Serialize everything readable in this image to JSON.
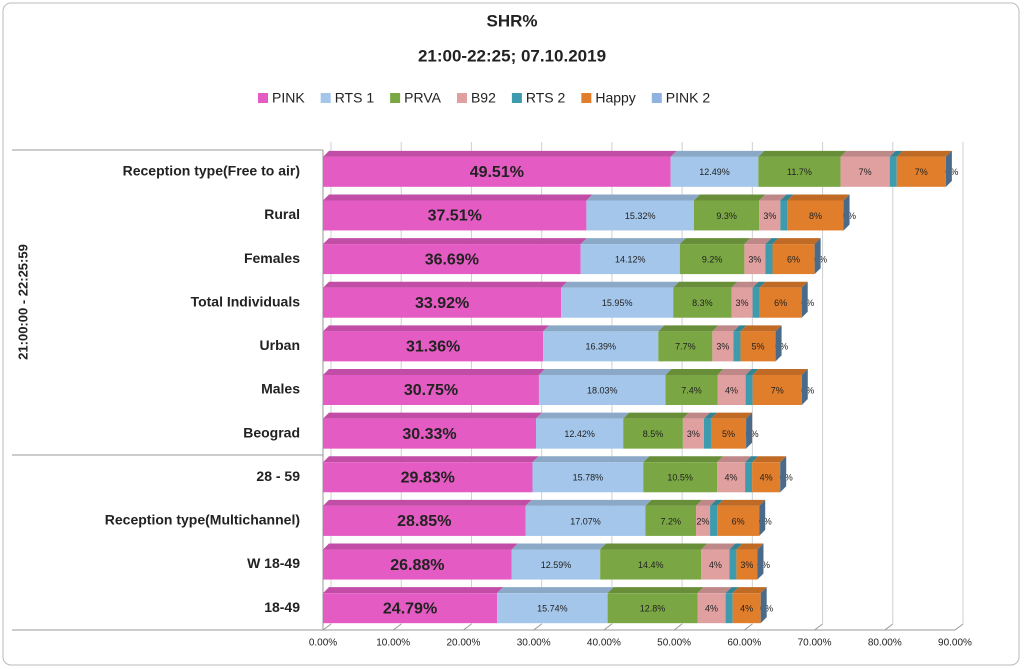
{
  "chart_data": {
    "type": "stacked-bar-horizontal",
    "title": "SHR%",
    "subtitle": "21:00-22:25; 07.10.2019",
    "group_label": "21:00:00 - 22:25:59",
    "categories": [
      "Reception type(Free to air)",
      "Rural",
      "Females",
      "Total Individuals",
      "Urban",
      "Males",
      "Beograd",
      "28 - 59",
      "Reception type(Multichannel)",
      "W 18-49",
      "18-49"
    ],
    "series": [
      {
        "name": "PINK",
        "color": "#e45bc3",
        "values": [
          49.51,
          37.51,
          36.69,
          33.92,
          31.36,
          30.75,
          30.33,
          29.83,
          28.85,
          26.88,
          24.79
        ],
        "value_labels": [
          "49.51%",
          "37.51%",
          "36.69%",
          "33.92%",
          "31.36%",
          "30.75%",
          "30.33%",
          "29.83%",
          "28.85%",
          "26.88%",
          "24.79%"
        ]
      },
      {
        "name": "RTS 1",
        "color": "#a3c6ea",
        "values": [
          12.49,
          15.32,
          14.12,
          15.95,
          16.39,
          18.03,
          12.42,
          15.78,
          17.07,
          12.59,
          15.74
        ],
        "value_labels": [
          "12.49%",
          "15.32%",
          "14.12%",
          "15.95%",
          "16.39%",
          "18.03%",
          "12.42%",
          "15.78%",
          "17.07%",
          "12.59%",
          "15.74%"
        ]
      },
      {
        "name": "PRVA",
        "color": "#7aa743",
        "values": [
          11.7,
          9.3,
          9.2,
          8.3,
          7.7,
          7.4,
          8.5,
          10.5,
          7.2,
          14.4,
          12.8
        ],
        "value_labels": [
          "11.7%",
          "9.3%",
          "9.2%",
          "8.3%",
          "7.7%",
          "7.4%",
          "8.5%",
          "10.5%",
          "7.2%",
          "14.4%",
          "12.8%"
        ]
      },
      {
        "name": "B92",
        "color": "#e1a0a0",
        "values": [
          7,
          3,
          3,
          3,
          3,
          4,
          3,
          4,
          2,
          4,
          4
        ],
        "value_labels": [
          "7%",
          "3%",
          "3%",
          "3%",
          "3%",
          "4%",
          "3%",
          "4%",
          "2%",
          "4%",
          "4%"
        ]
      },
      {
        "name": "RTS 2",
        "color": "#3d9bad",
        "values": [
          1,
          1,
          1,
          1,
          1,
          1,
          1,
          1,
          1,
          1,
          1
        ]
      },
      {
        "name": "Happy",
        "color": "#e17e2c",
        "values": [
          7,
          8,
          6,
          6,
          5,
          7,
          5,
          4,
          6,
          3,
          4
        ],
        "value_labels": [
          "7%",
          "8%",
          "6%",
          "6%",
          "5%",
          "7%",
          "5%",
          "4%",
          "6%",
          "3%",
          "4%"
        ]
      },
      {
        "name": "PINK 2",
        "color": "#8fb3e0",
        "values": [
          0,
          0,
          0,
          0,
          0,
          0,
          0,
          0,
          0,
          0,
          0
        ],
        "value_labels": [
          "0%",
          "0%",
          "0%",
          "0%",
          "0%",
          "0%",
          "0%",
          "0%",
          "0%",
          "0%",
          "0%"
        ]
      }
    ],
    "xlim": [
      0,
      90
    ],
    "xticks": [
      {
        "value": 0,
        "label": "0.00%"
      },
      {
        "value": 10,
        "label": "10.00%"
      },
      {
        "value": 20,
        "label": "20.00%"
      },
      {
        "value": 30,
        "label": "30.00%"
      },
      {
        "value": 40,
        "label": "40.00%"
      },
      {
        "value": 50,
        "label": "50.00%"
      },
      {
        "value": 60,
        "label": "60.00%"
      },
      {
        "value": 70,
        "label": "70.00%"
      },
      {
        "value": 80,
        "label": "80.00%"
      },
      {
        "value": 90,
        "label": "90.00%"
      }
    ],
    "grid": true
  }
}
